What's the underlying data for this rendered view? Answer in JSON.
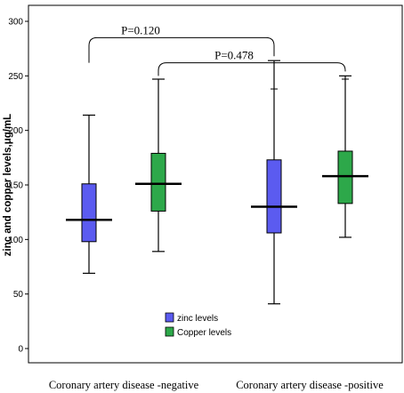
{
  "chart_data": {
    "type": "boxplot",
    "ylabel": "zinc and copper levels,μg/mL",
    "xlabel": "",
    "ylim": [
      -10,
      300
    ],
    "yticks": [
      0,
      50,
      100,
      150,
      200,
      250,
      300
    ],
    "grid": false,
    "legend_position": "bottom-center-left",
    "categories": [
      "Coronary artery disease -negative",
      "Coronary artery disease -positive"
    ],
    "series": [
      {
        "name": "zinc levels",
        "color": "#5b5bf0",
        "boxes": [
          {
            "min": 69,
            "q1": 98,
            "median": 118,
            "q3": 151,
            "max": 214
          },
          {
            "min": 41,
            "q1": 106,
            "median": 130,
            "q3": 173,
            "max": 264,
            "outlier_ticks": [
              238
            ]
          }
        ]
      },
      {
        "name": "Copper levels",
        "color": "#2da84a",
        "boxes": [
          {
            "min": 89,
            "q1": 126,
            "median": 151,
            "q3": 179,
            "max": 247
          },
          {
            "min": 102,
            "q1": 133,
            "median": 158,
            "q3": 181,
            "max": 250,
            "outlier_ticks": [
              247
            ]
          }
        ]
      }
    ],
    "annotations": [
      {
        "text": "P=0.120",
        "from": "zinc levels @ Coronary artery disease -negative",
        "to": "zinc levels @ Coronary artery disease -positive",
        "bracket_y": 285
      },
      {
        "text": "P=0.478",
        "from": "Copper levels @ Coronary artery disease -negative",
        "to": "Copper levels @ Coronary artery disease -positive",
        "bracket_y": 262
      }
    ]
  }
}
